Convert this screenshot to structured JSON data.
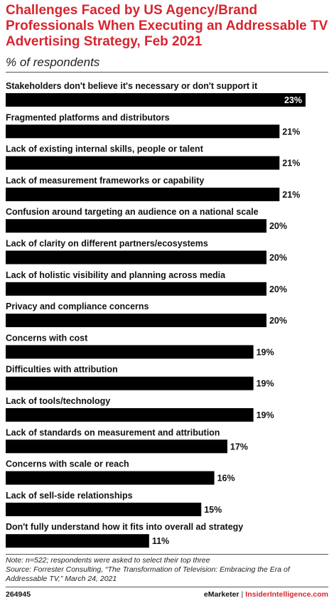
{
  "header": {
    "title": "Challenges Faced by US Agency/Brand Professionals When Executing an Addressable TV Advertising Strategy, Feb 2021",
    "subtitle": "% of respondents"
  },
  "chart_data": {
    "type": "bar",
    "orientation": "horizontal",
    "value_suffix": "%",
    "xlim": [
      0,
      23
    ],
    "bar_color": "#000000",
    "categories": [
      "Stakeholders don't believe it's necessary or don't support it",
      "Fragmented platforms and distributors",
      "Lack of existing internal skills, people or talent",
      "Lack of measurement frameworks or capability",
      "Confusion around targeting an audience on a national scale",
      "Lack of clarity on different partners/ecosystems",
      "Lack of holistic visibility and planning across media",
      "Privacy and compliance concerns",
      "Concerns with cost",
      "Difficulties with attribution",
      "Lack of tools/technology",
      "Lack of standards on measurement and attribution",
      "Concerns with scale or reach",
      "Lack of sell-side relationships",
      "Don't fully understand how it fits into overall ad strategy"
    ],
    "values": [
      23,
      21,
      21,
      21,
      20,
      20,
      20,
      20,
      19,
      19,
      19,
      17,
      16,
      15,
      11
    ]
  },
  "footer": {
    "note": "Note: n=522; respondents were asked to select their top three",
    "source": "Source: Forrester Consulting, “The Transformation of Television: Embracing the Era of Addressable TV,” March 24, 2021",
    "chart_id": "264945",
    "brand_emarketer": "eMarketer",
    "brand_separator": "|",
    "brand_insider": "InsiderIntelligence.com"
  },
  "colors": {
    "accent": "#d7252f",
    "bar": "#000000"
  }
}
